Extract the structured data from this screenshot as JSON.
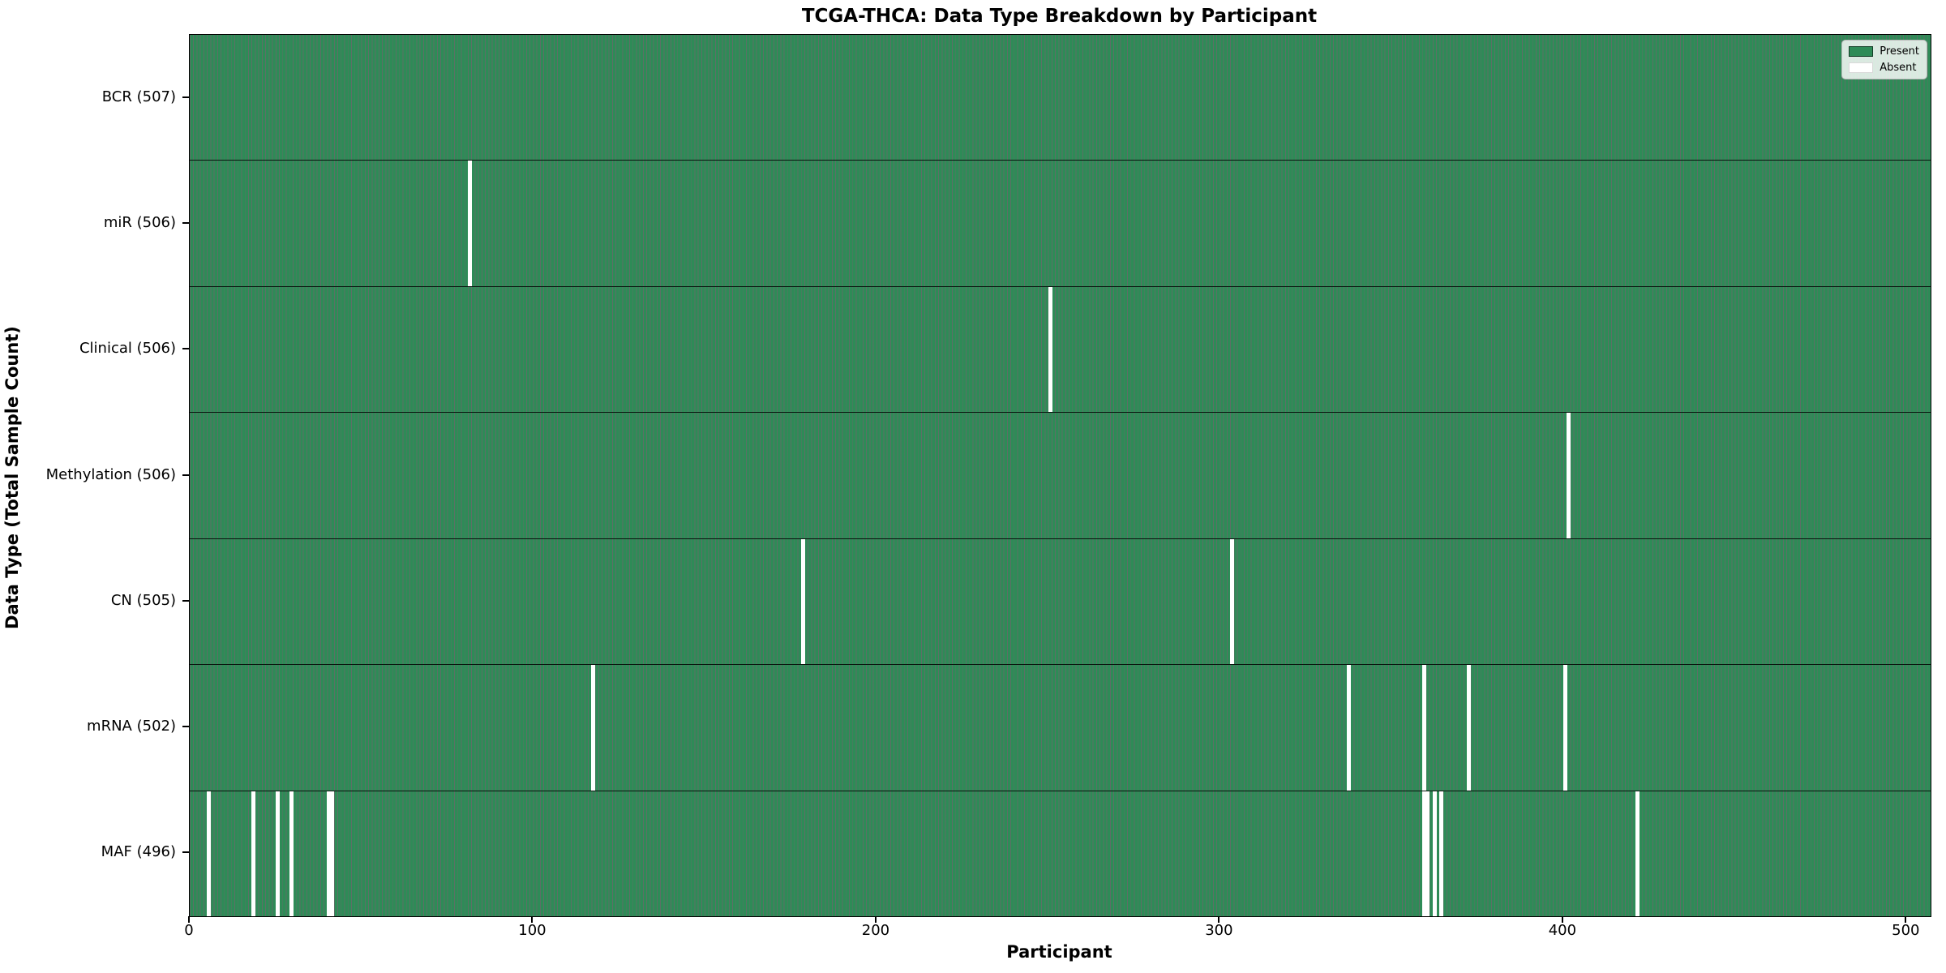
{
  "chart_data": {
    "type": "heatmap",
    "title": "TCGA-THCA: Data Type Breakdown by Participant",
    "xlabel": "Participant",
    "ylabel": "Data Type (Total Sample Count)",
    "x_ticks": [
      0,
      100,
      200,
      300,
      400,
      500
    ],
    "x_range": [
      0,
      507
    ],
    "n_participants": 507,
    "grid": false,
    "legend": {
      "position": "upper right",
      "entries": [
        {
          "label": "Present",
          "color": "#2e8b57"
        },
        {
          "label": "Absent",
          "color": "#ffffff"
        }
      ]
    },
    "colors": {
      "present_fill": "#2e8b57",
      "absent_fill": "#ffffff",
      "bar_edge": "rgba(5,35,20,0.65)",
      "axis": "#000000"
    },
    "rows": [
      {
        "label": "BCR (507)",
        "data_type": "BCR",
        "total": 507,
        "absent_participants": []
      },
      {
        "label": "miR (506)",
        "data_type": "miR",
        "total": 506,
        "absent_participants": [
          81
        ]
      },
      {
        "label": "Clinical (506)",
        "data_type": "Clinical",
        "total": 506,
        "absent_participants": [
          250
        ]
      },
      {
        "label": "Methylation (506)",
        "data_type": "Methylation",
        "total": 506,
        "absent_participants": [
          401
        ]
      },
      {
        "label": "CN (505)",
        "data_type": "CN",
        "total": 505,
        "absent_participants": [
          178,
          303
        ]
      },
      {
        "label": "mRNA (502)",
        "data_type": "mRNA",
        "total": 502,
        "absent_participants": [
          117,
          337,
          359,
          372,
          400
        ]
      },
      {
        "label": "MAF (496)",
        "data_type": "MAF",
        "total": 496,
        "absent_participants": [
          5,
          18,
          25,
          29,
          40,
          41,
          359,
          360,
          362,
          364,
          421
        ]
      }
    ]
  }
}
